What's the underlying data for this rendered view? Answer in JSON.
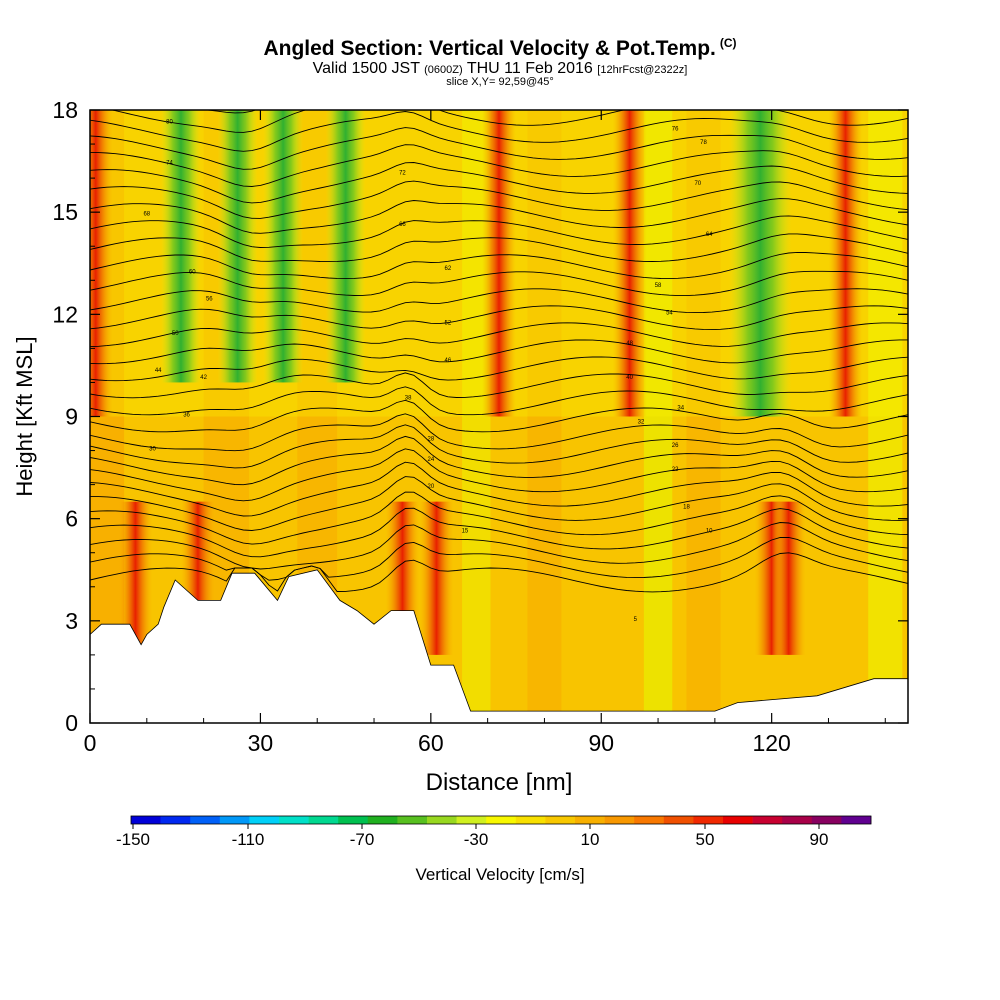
{
  "chart_data": {
    "type": "heatmap",
    "title": "Angled Section: Vertical Velocity & Pot.Temp.",
    "title_mark": "(C)",
    "subtitle_main_a": "Valid 1500 JST",
    "subtitle_small_a": "(0600Z)",
    "subtitle_main_b": "THU 11 Feb 2016",
    "subtitle_small_b": "[12hrFcst@2322z]",
    "slice_label": "slice X,Y= 92,59@45°",
    "xlabel": "Distance [nm]",
    "ylabel": "Height [Kft MSL]",
    "xlim": [
      0,
      144
    ],
    "ylim": [
      0,
      18
    ],
    "xticks": [
      0,
      30,
      60,
      90,
      120
    ],
    "yticks": [
      0,
      3,
      6,
      9,
      12,
      15,
      18
    ],
    "colorbar_label": "Vertical Velocity [cm/s]",
    "colorbar_ticks": [
      "-150",
      "-110",
      "-70",
      "-30",
      "10",
      "50",
      "90"
    ],
    "colorbar_colors": [
      "#0000d8",
      "#0028f0",
      "#0060f8",
      "#0098f8",
      "#00d0f8",
      "#00e0c8",
      "#00d890",
      "#00c050",
      "#20b020",
      "#58c020",
      "#98d820",
      "#d0f020",
      "#f8f800",
      "#f8e000",
      "#f8c800",
      "#f8b000",
      "#f89800",
      "#f87800",
      "#f05000",
      "#f02800",
      "#e80000",
      "#c80030",
      "#a80048",
      "#880060",
      "#600090"
    ],
    "updraft_columns_x": [
      1,
      8,
      19,
      55,
      61,
      72,
      95,
      120,
      123,
      133
    ],
    "downdraft_columns_x": [
      16,
      26,
      34,
      45,
      118
    ],
    "terrain": [
      [
        0,
        2.6
      ],
      [
        2,
        2.9
      ],
      [
        7,
        2.9
      ],
      [
        9,
        2.3
      ],
      [
        10,
        2.6
      ],
      [
        12,
        2.9
      ],
      [
        13,
        3.4
      ],
      [
        15,
        4.2
      ],
      [
        19,
        3.6
      ],
      [
        23,
        3.6
      ],
      [
        25,
        4.4
      ],
      [
        29,
        4.4
      ],
      [
        33,
        3.6
      ],
      [
        35,
        4.3
      ],
      [
        40,
        4.5
      ],
      [
        44,
        3.6
      ],
      [
        47,
        3.3
      ],
      [
        50,
        2.9
      ],
      [
        53,
        3.3
      ],
      [
        57,
        3.3
      ],
      [
        60,
        1.7
      ],
      [
        64,
        1.7
      ],
      [
        67,
        0.35
      ],
      [
        85,
        0.35
      ],
      [
        110,
        0.35
      ],
      [
        114,
        0.6
      ],
      [
        128,
        0.8
      ],
      [
        138,
        1.3
      ],
      [
        144,
        1.3
      ]
    ],
    "theta_contour_labels": [
      "5",
      "10",
      "15",
      "18",
      "20",
      "22",
      "24",
      "26",
      "28",
      "30",
      "32",
      "34",
      "36",
      "38",
      "40",
      "42",
      "44",
      "46",
      "48",
      "50",
      "52",
      "54",
      "56",
      "58",
      "60",
      "62",
      "64",
      "66",
      "68",
      "70",
      "72",
      "74",
      "76",
      "78",
      "80"
    ]
  }
}
